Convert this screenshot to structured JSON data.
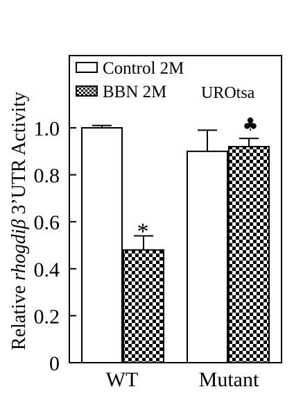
{
  "chart_data": {
    "type": "bar",
    "categories": [
      "WT",
      "Mutant"
    ],
    "series": [
      {
        "name": "Control 2M",
        "values": [
          1.0,
          0.9
        ],
        "errors": [
          0.01,
          0.09
        ],
        "fill": "white"
      },
      {
        "name": "BBN 2M",
        "values": [
          0.48,
          0.92
        ],
        "errors": [
          0.06,
          0.035
        ],
        "fill": "checkerboard"
      }
    ],
    "annotations": {
      "wt_bbn": "*",
      "mutant_bbn": "♣",
      "cell_line": "UROtsa"
    },
    "ylabel": {
      "prefix": "Relative ",
      "gene": "rhogdiβ",
      "suffix": " 3’UTR Activity"
    },
    "yticks": [
      0,
      0.2,
      0.4,
      0.6,
      0.8,
      1.0
    ],
    "ytick_labels": [
      "0",
      "0.2",
      "0.4",
      "0.6",
      "0.8",
      "1.0"
    ],
    "ylim": [
      0,
      1.2
    ],
    "grid": false,
    "legend_position": "top-left"
  },
  "colors": {
    "ink": "#000000",
    "paper": "#ffffff"
  }
}
